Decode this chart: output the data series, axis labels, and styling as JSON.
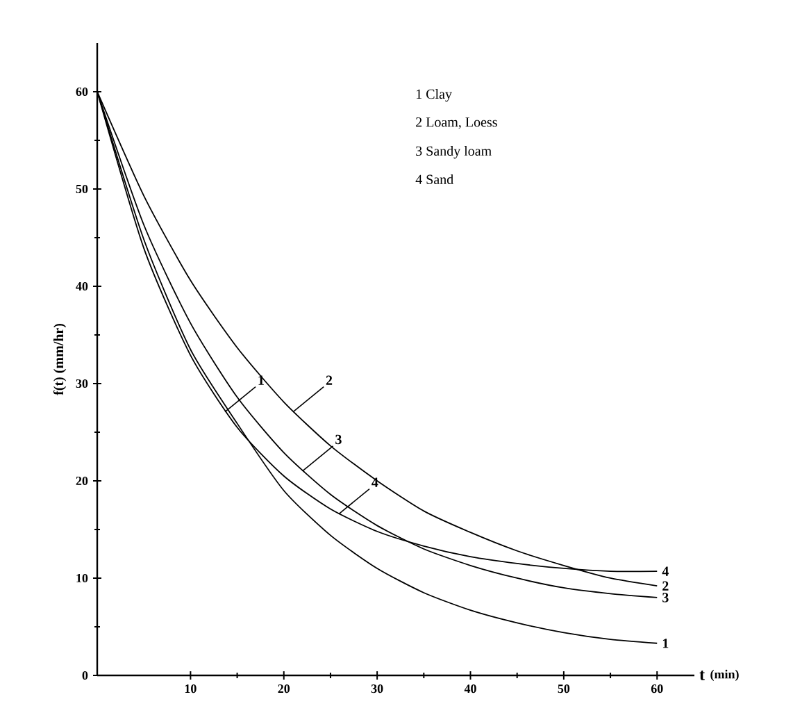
{
  "chart_data": {
    "type": "line",
    "xlabel": "t",
    "x2label": "(min)",
    "ylabel": "f(t)  (mm/hr)",
    "x": [
      0,
      5,
      10,
      15,
      20,
      25,
      30,
      35,
      40,
      45,
      50,
      55,
      60
    ],
    "series": [
      {
        "name": "1",
        "color": "#000000",
        "values": [
          60,
          44.8,
          33.5,
          25.9,
          19.0,
          14.4,
          11.0,
          8.5,
          6.7,
          5.4,
          4.4,
          3.7,
          3.3
        ]
      },
      {
        "name": "2",
        "color": "#000000",
        "values": [
          60,
          49.3,
          40.6,
          33.7,
          28.1,
          23.6,
          20.0,
          16.9,
          14.7,
          12.8,
          11.3,
          10.0,
          9.2
        ]
      },
      {
        "name": "3",
        "color": "#000000",
        "values": [
          60,
          46.3,
          36.2,
          28.6,
          22.9,
          18.6,
          15.4,
          13.0,
          11.3,
          10.0,
          9.0,
          8.4,
          8.0
        ]
      },
      {
        "name": "4",
        "color": "#000000",
        "values": [
          60,
          43.9,
          32.9,
          25.5,
          20.5,
          17.1,
          14.8,
          13.3,
          12.2,
          11.5,
          11.0,
          10.7,
          10.7
        ]
      }
    ],
    "xlim": [
      0,
      64
    ],
    "ylim": [
      0,
      65
    ],
    "xticks": [
      10,
      20,
      30,
      40,
      50,
      60
    ],
    "yticks": [
      0,
      10,
      20,
      30,
      40,
      50,
      60
    ],
    "annotations": [
      "1 Clay",
      "2 Loam, Loess",
      "3 Sandy loam",
      "4 Sand",
      {
        "text": "1",
        "x": 13.7,
        "y": 27.1
      },
      {
        "text": "2",
        "x": 21,
        "y": 27.1
      },
      {
        "text": "3",
        "x": 22,
        "y": 21
      },
      {
        "text": "4",
        "x": 25.9,
        "y": 16.6
      }
    ],
    "grid": false,
    "marker": "none",
    "line_style": "solid"
  }
}
